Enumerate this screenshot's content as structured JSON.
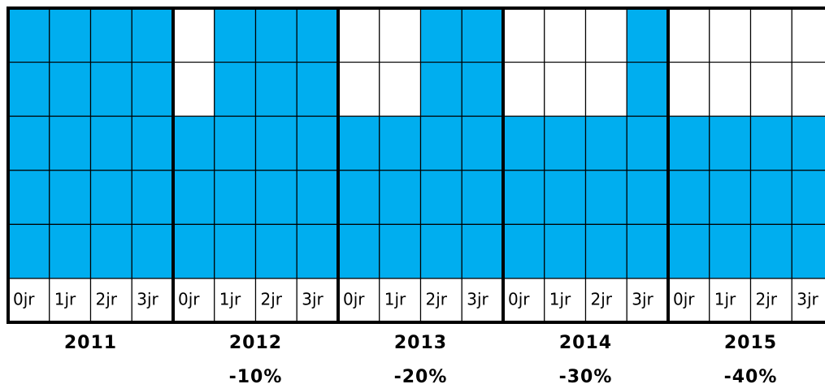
{
  "groups": [
    {
      "year": "2011",
      "columns": [
        "0jr",
        "1jr",
        "2jr",
        "3jr"
      ],
      "rows": [
        [
          true,
          true,
          true,
          true
        ],
        [
          true,
          true,
          true,
          true
        ],
        [
          true,
          true,
          true,
          true
        ],
        [
          true,
          true,
          true,
          true
        ],
        [
          true,
          true,
          true,
          true
        ]
      ]
    },
    {
      "year": "2012",
      "change": "-10%",
      "columns": [
        "0jr",
        "1jr",
        "2jr",
        "3jr"
      ],
      "rows": [
        [
          false,
          true,
          true,
          true
        ],
        [
          false,
          true,
          true,
          true
        ],
        [
          true,
          true,
          true,
          true
        ],
        [
          true,
          true,
          true,
          true
        ],
        [
          true,
          true,
          true,
          true
        ]
      ]
    },
    {
      "year": "2013",
      "change": "-20%",
      "columns": [
        "0jr",
        "1jr",
        "2jr",
        "3jr"
      ],
      "rows": [
        [
          false,
          false,
          true,
          true
        ],
        [
          false,
          false,
          true,
          true
        ],
        [
          true,
          true,
          true,
          true
        ],
        [
          true,
          true,
          true,
          true
        ],
        [
          true,
          true,
          true,
          true
        ]
      ]
    },
    {
      "year": "2014",
      "change": "-30%",
      "columns": [
        "0jr",
        "1jr",
        "2jr",
        "3jr"
      ],
      "rows": [
        [
          false,
          false,
          false,
          true
        ],
        [
          false,
          false,
          false,
          true
        ],
        [
          true,
          true,
          true,
          true
        ],
        [
          true,
          true,
          true,
          true
        ],
        [
          true,
          true,
          true,
          true
        ]
      ]
    },
    {
      "year": "2015",
      "change": "-40%",
      "columns": [
        "0jr",
        "1jr",
        "2jr",
        "3jr"
      ],
      "rows": [
        [
          false,
          false,
          false,
          false
        ],
        [
          false,
          false,
          false,
          false
        ],
        [
          true,
          true,
          true,
          true
        ],
        [
          true,
          true,
          true,
          true
        ],
        [
          true,
          true,
          true,
          true
        ]
      ]
    }
  ],
  "fill_color": "#00aeef"
}
